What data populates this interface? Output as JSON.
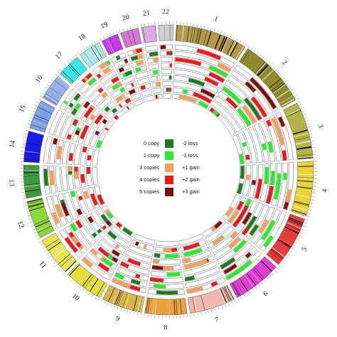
{
  "chromosomes": [
    {
      "label": "1",
      "size": 249,
      "color": "#b39a4a"
    },
    {
      "label": "2",
      "size": 243,
      "color": "#8f8a2c"
    },
    {
      "label": "3",
      "size": 198,
      "color": "#b3b347"
    },
    {
      "label": "4",
      "size": 191,
      "color": "#e8d23a"
    },
    {
      "label": "5",
      "size": 181,
      "color": "#e63d3d"
    },
    {
      "label": "6",
      "size": 171,
      "color": "#e23fd6"
    },
    {
      "label": "7",
      "size": 159,
      "color": "#f0b7b0"
    },
    {
      "label": "8",
      "size": 146,
      "color": "#e8a23a"
    },
    {
      "label": "9",
      "size": 141,
      "color": "#d9b44a"
    },
    {
      "label": "10",
      "size": 136,
      "color": "#e6df3f"
    },
    {
      "label": "11",
      "size": 135,
      "color": "#e6e55a"
    },
    {
      "label": "12",
      "size": 133,
      "color": "#8fd63a"
    },
    {
      "label": "13",
      "size": 115,
      "color": "#3d9a3d"
    },
    {
      "label": "14",
      "size": 107,
      "color": "#1a1ae6"
    },
    {
      "label": "15",
      "size": 102,
      "color": "#7fa0e6"
    },
    {
      "label": "16",
      "size": 90,
      "color": "#9ab0e8"
    },
    {
      "label": "17",
      "size": 83,
      "color": "#3de6e6"
    },
    {
      "label": "18",
      "size": 78,
      "color": "#b0e8e6"
    },
    {
      "label": "19",
      "size": 59,
      "color": "#c23de6"
    },
    {
      "label": "20",
      "size": 63,
      "color": "#d07ad6"
    },
    {
      "label": "21",
      "size": 48,
      "color": "#d9a8e6"
    },
    {
      "label": "22",
      "size": 51,
      "color": "#cfcfcf"
    }
  ],
  "legend": [
    {
      "left": "0  copy",
      "right": "-2 loss",
      "color": "#1f7a1f"
    },
    {
      "left": "1 copy",
      "right": "-1 loss",
      "color": "#2ee82e"
    },
    {
      "left": "3 copies",
      "right": "+1 gain",
      "color": "#f2a05a"
    },
    {
      "left": "4 copies",
      "right": "+2 gain",
      "color": "#e61a1a"
    },
    {
      "left": "5 copies",
      "right": "+3 gain",
      "color": "#7a0f0f"
    }
  ],
  "colors": {
    "track_fill": "#ffffff",
    "track_frame": "#6b6b6b",
    "track_bg_outer": "#f0dede",
    "track_bg_inner": "#dcecf6"
  }
}
